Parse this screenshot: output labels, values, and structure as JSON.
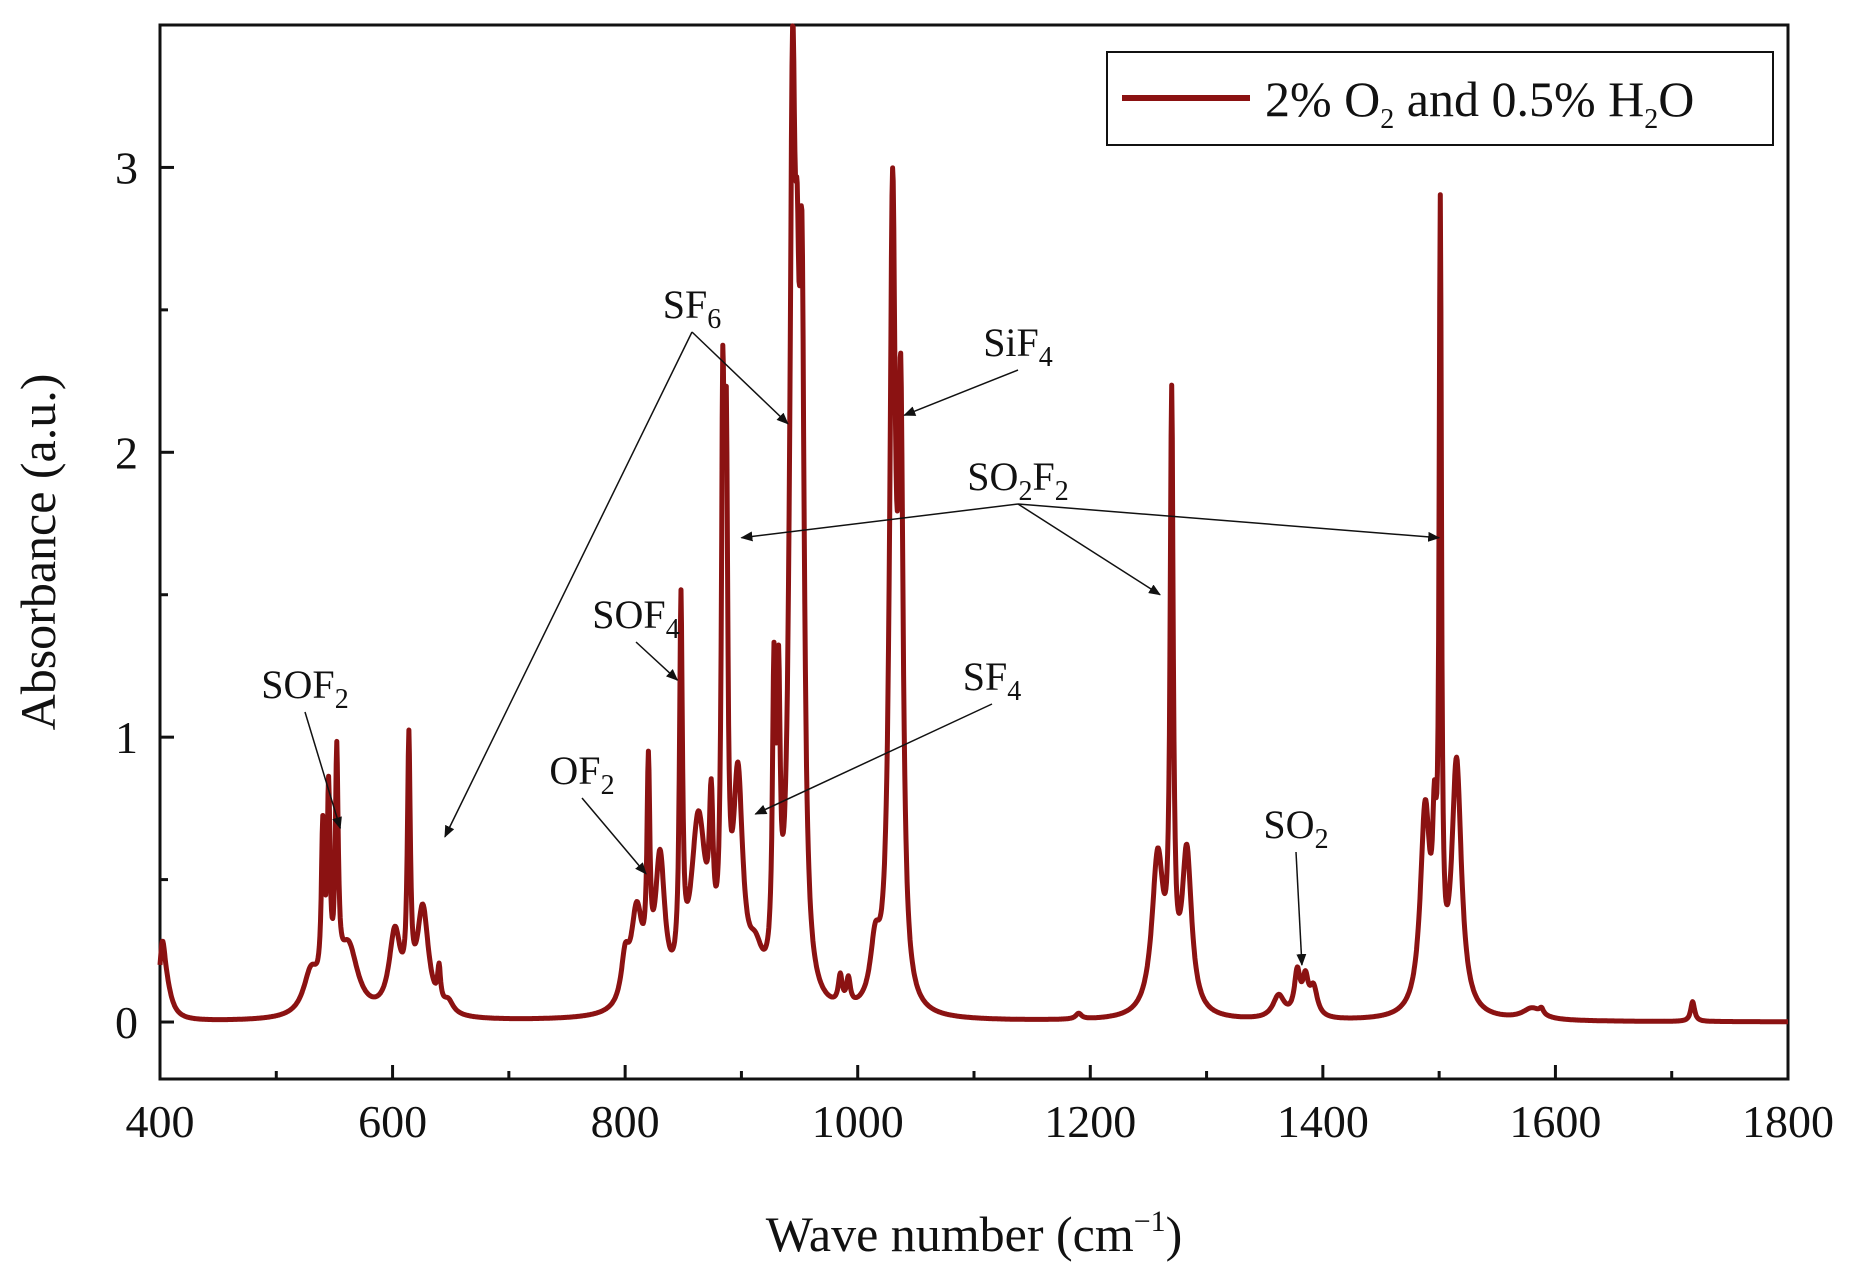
{
  "chart_data": {
    "type": "line",
    "title": "",
    "xlabel": "Wave number (cm⁻¹)",
    "xlabel_parts": {
      "main": "Wave number (cm",
      "sup": "−1",
      "close": ")"
    },
    "ylabel": "Absorbance (a.u.)",
    "xlim": [
      400,
      1800
    ],
    "ylim": [
      -0.2,
      3.5
    ],
    "x_ticks": [
      400,
      600,
      800,
      1000,
      1200,
      1400,
      1600,
      1800
    ],
    "x_tick_labels": [
      "400",
      "600",
      "800",
      "1000",
      "1200",
      "1400",
      "1600",
      "1800"
    ],
    "y_ticks": [
      0,
      1,
      2,
      3
    ],
    "y_tick_labels": [
      "0",
      "1",
      "2",
      "3"
    ],
    "grid": false,
    "legend_position": "top-right",
    "series": [
      {
        "name": "2% O2 and 0.5% H2O",
        "legend_parts": [
          "2% O",
          "2",
          " and 0.5% H",
          "2",
          "O"
        ],
        "color": "#8B1212",
        "peaks": [
          {
            "x": 402,
            "h": 0.2,
            "w": 3
          },
          {
            "x": 405,
            "h": 0.1,
            "w": 6
          },
          {
            "x": 530,
            "h": 0.15,
            "w": 8
          },
          {
            "x": 540,
            "h": 0.55,
            "w": 1.5
          },
          {
            "x": 545,
            "h": 0.68,
            "w": 1.5
          },
          {
            "x": 552,
            "h": 0.8,
            "w": 1.5
          },
          {
            "x": 562,
            "h": 0.24,
            "w": 10
          },
          {
            "x": 602,
            "h": 0.28,
            "w": 6
          },
          {
            "x": 614,
            "h": 0.88,
            "w": 1.5
          },
          {
            "x": 626,
            "h": 0.37,
            "w": 6
          },
          {
            "x": 640,
            "h": 0.12,
            "w": 1.5
          },
          {
            "x": 648,
            "h": 0.04,
            "w": 5
          },
          {
            "x": 800,
            "h": 0.15,
            "w": 4
          },
          {
            "x": 810,
            "h": 0.33,
            "w": 6
          },
          {
            "x": 820,
            "h": 0.72,
            "w": 1.5
          },
          {
            "x": 830,
            "h": 0.5,
            "w": 5
          },
          {
            "x": 848,
            "h": 1.3,
            "w": 1.5
          },
          {
            "x": 863,
            "h": 0.65,
            "w": 8
          },
          {
            "x": 874,
            "h": 0.5,
            "w": 2
          },
          {
            "x": 884,
            "h": 1.82,
            "w": 1.5
          },
          {
            "x": 887,
            "h": 1.6,
            "w": 1.5
          },
          {
            "x": 897,
            "h": 0.75,
            "w": 5
          },
          {
            "x": 912,
            "h": 0.15,
            "w": 8
          },
          {
            "x": 928,
            "h": 1.0,
            "w": 1.6
          },
          {
            "x": 932,
            "h": 0.9,
            "w": 1.6
          },
          {
            "x": 944,
            "h": 3.0,
            "w": 3
          },
          {
            "x": 948,
            "h": 1.2,
            "w": 2
          },
          {
            "x": 952,
            "h": 2.2,
            "w": 2.5
          },
          {
            "x": 985,
            "h": 0.1,
            "w": 2
          },
          {
            "x": 992,
            "h": 0.09,
            "w": 2
          },
          {
            "x": 1015,
            "h": 0.2,
            "w": 5
          },
          {
            "x": 1030,
            "h": 2.75,
            "w": 3
          },
          {
            "x": 1037,
            "h": 1.9,
            "w": 2.5
          },
          {
            "x": 1190,
            "h": 0.02,
            "w": 3
          },
          {
            "x": 1258,
            "h": 0.55,
            "w": 6
          },
          {
            "x": 1270,
            "h": 2.05,
            "w": 1.6
          },
          {
            "x": 1283,
            "h": 0.56,
            "w": 5
          },
          {
            "x": 1362,
            "h": 0.08,
            "w": 6
          },
          {
            "x": 1378,
            "h": 0.15,
            "w": 3
          },
          {
            "x": 1385,
            "h": 0.12,
            "w": 3
          },
          {
            "x": 1392,
            "h": 0.1,
            "w": 4
          },
          {
            "x": 1488,
            "h": 0.7,
            "w": 5
          },
          {
            "x": 1496,
            "h": 0.45,
            "w": 2
          },
          {
            "x": 1501,
            "h": 2.65,
            "w": 1.2
          },
          {
            "x": 1515,
            "h": 0.88,
            "w": 5
          },
          {
            "x": 1580,
            "h": 0.04,
            "w": 10
          },
          {
            "x": 1588,
            "h": 0.02,
            "w": 2
          },
          {
            "x": 1718,
            "h": 0.07,
            "w": 2
          }
        ]
      }
    ],
    "annotations": [
      {
        "name": "SOF2",
        "parts": [
          "SOF",
          "2"
        ],
        "targets": [
          [
            555,
            0.68
          ]
        ]
      },
      {
        "name": "SF6",
        "parts": [
          "SF",
          "6"
        ],
        "targets": [
          [
            645,
            0.65
          ],
          [
            940,
            2.1
          ]
        ]
      },
      {
        "name": "SiF4",
        "parts": [
          "SiF",
          "4"
        ],
        "targets": [
          [
            1040,
            2.13
          ]
        ]
      },
      {
        "name": "SO2F2",
        "parts": [
          "SO",
          "2",
          "F",
          "2"
        ],
        "targets": [
          [
            900,
            1.7
          ],
          [
            1260,
            1.5
          ],
          [
            1500,
            1.7
          ]
        ]
      },
      {
        "name": "SOF4",
        "parts": [
          "SOF",
          "4"
        ],
        "targets": [
          [
            845,
            1.2
          ]
        ]
      },
      {
        "name": "OF2",
        "parts": [
          "OF",
          "2"
        ],
        "targets": [
          [
            818,
            0.52
          ]
        ]
      },
      {
        "name": "SF4",
        "parts": [
          "SF",
          "4"
        ],
        "targets": [
          [
            912,
            0.73
          ]
        ]
      },
      {
        "name": "SO2",
        "parts": [
          "SO",
          "2"
        ],
        "targets": [
          [
            1382,
            0.2
          ]
        ]
      }
    ]
  }
}
